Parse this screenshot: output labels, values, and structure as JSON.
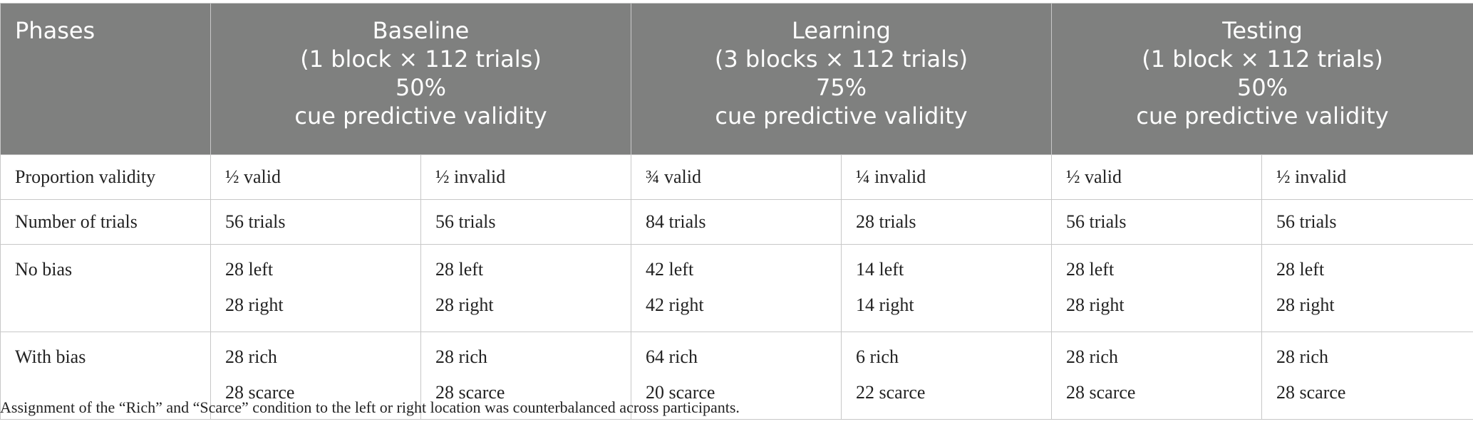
{
  "table": {
    "corner_header": "Phases",
    "phases": [
      {
        "name": "Baseline",
        "structure": "(1 block × 112 trials)",
        "validity_pct": "50%",
        "validity_label": "cue predictive validity"
      },
      {
        "name": "Learning",
        "structure": "(3 blocks × 112 trials)",
        "validity_pct": "75%",
        "validity_label": "cue predictive validity"
      },
      {
        "name": "Testing",
        "structure": "(1 block × 112 trials)",
        "validity_pct": "50%",
        "validity_label": "cue predictive validity"
      }
    ],
    "rows": [
      {
        "label": "Proportion validity",
        "cells": [
          [
            "½ valid"
          ],
          [
            "½ invalid"
          ],
          [
            "¾ valid"
          ],
          [
            "¼ invalid"
          ],
          [
            "½ valid"
          ],
          [
            "½ invalid"
          ]
        ]
      },
      {
        "label": "Number of trials",
        "cells": [
          [
            "56 trials"
          ],
          [
            "56 trials"
          ],
          [
            "84 trials"
          ],
          [
            "28 trials"
          ],
          [
            "56 trials"
          ],
          [
            "56 trials"
          ]
        ]
      },
      {
        "label": "No bias",
        "cells": [
          [
            "28 left",
            "28 right"
          ],
          [
            "28 left",
            "28 right"
          ],
          [
            "42 left",
            "42 right"
          ],
          [
            "14 left",
            "14 right"
          ],
          [
            "28 left",
            "28 right"
          ],
          [
            "28 left",
            "28 right"
          ]
        ]
      },
      {
        "label": "With bias",
        "cells": [
          [
            "28 rich",
            "28 scarce"
          ],
          [
            "28 rich",
            "28 scarce"
          ],
          [
            "64 rich",
            "20 scarce"
          ],
          [
            "6 rich",
            "22 scarce"
          ],
          [
            "28 rich",
            "28 scarce"
          ],
          [
            "28 rich",
            "28 scarce"
          ]
        ]
      }
    ]
  },
  "footnote": "Assignment of the “Rich” and “Scarce” condition to the left or right location was counterbalanced across participants."
}
